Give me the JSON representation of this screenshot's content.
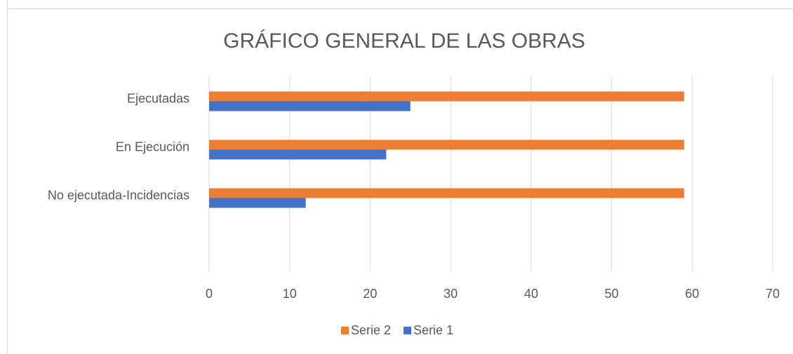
{
  "chart_data": {
    "type": "hbar",
    "title": "GRÁFICO GENERAL DE LAS OBRAS",
    "categories": [
      "Ejecutadas",
      "En Ejecución",
      "No ejecutada-Incidencias",
      null
    ],
    "series": [
      {
        "name": "Serie 2",
        "color": "#ed7d31",
        "values": [
          59,
          59,
          59,
          null
        ]
      },
      {
        "name": "Serie 1",
        "color": "#4472c4",
        "values": [
          25,
          22,
          12,
          null
        ]
      }
    ],
    "xlim": [
      0,
      70
    ],
    "xticks": [
      0,
      10,
      20,
      30,
      40,
      50,
      60,
      70
    ],
    "grid": true,
    "legend": "bottom"
  }
}
